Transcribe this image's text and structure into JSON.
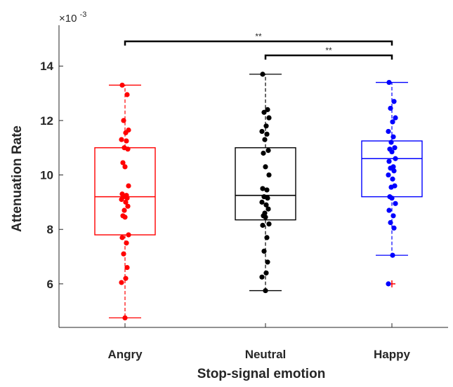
{
  "chart_data": {
    "type": "box",
    "xlabel": "Stop-signal emotion",
    "ylabel": "Attenuation Rate",
    "y_exponent_label": "×10",
    "y_exponent_power": "-3",
    "y_scale_factor": 0.001,
    "ylim": [
      4.4,
      15.5
    ],
    "yticks": [
      6,
      8,
      10,
      12,
      14
    ],
    "categories": [
      "Angry",
      "Neutral",
      "Happy"
    ],
    "series": [
      {
        "category": "Angry",
        "color": "#ff0000",
        "whisker_low": 4.75,
        "q1": 7.8,
        "median": 9.2,
        "q3": 11.0,
        "whisker_high": 13.3,
        "outliers": [],
        "points": [
          13.3,
          12.95,
          12.0,
          11.65,
          11.55,
          11.3,
          11.25,
          11.0,
          10.95,
          10.45,
          10.3,
          9.6,
          9.3,
          9.25,
          9.2,
          9.15,
          9.1,
          9.0,
          8.85,
          8.7,
          8.5,
          8.45,
          7.8,
          7.7,
          7.5,
          7.1,
          6.6,
          6.2,
          6.05,
          4.75
        ]
      },
      {
        "category": "Neutral",
        "color": "#000000",
        "whisker_low": 5.75,
        "q1": 8.35,
        "median": 9.25,
        "q3": 11.0,
        "whisker_high": 13.7,
        "outliers": [],
        "points": [
          13.7,
          12.4,
          12.3,
          12.1,
          11.8,
          11.6,
          11.5,
          11.3,
          10.9,
          10.8,
          10.3,
          10.0,
          9.5,
          9.45,
          9.2,
          9.15,
          9.0,
          8.9,
          8.75,
          8.6,
          8.5,
          8.45,
          8.2,
          8.15,
          7.7,
          7.2,
          6.8,
          6.4,
          6.25,
          5.75
        ]
      },
      {
        "category": "Happy",
        "color": "#0000ff",
        "whisker_low": 7.05,
        "q1": 9.2,
        "median": 10.6,
        "q3": 11.25,
        "whisker_high": 13.4,
        "outliers": [
          6.0
        ],
        "outlier_color": "#ff0000",
        "points": [
          13.4,
          12.7,
          12.45,
          12.1,
          11.95,
          11.6,
          11.4,
          11.2,
          11.0,
          10.95,
          10.85,
          10.6,
          10.5,
          10.3,
          10.25,
          10.15,
          10.0,
          9.85,
          9.6,
          9.55,
          9.2,
          9.15,
          8.95,
          8.7,
          8.5,
          8.25,
          8.05,
          7.05,
          6.0
        ]
      }
    ],
    "significance": [
      {
        "from": "Angry",
        "to": "Happy",
        "label": "**"
      },
      {
        "from": "Neutral",
        "to": "Happy",
        "label": "**"
      }
    ],
    "grid": false,
    "legend": "none"
  }
}
